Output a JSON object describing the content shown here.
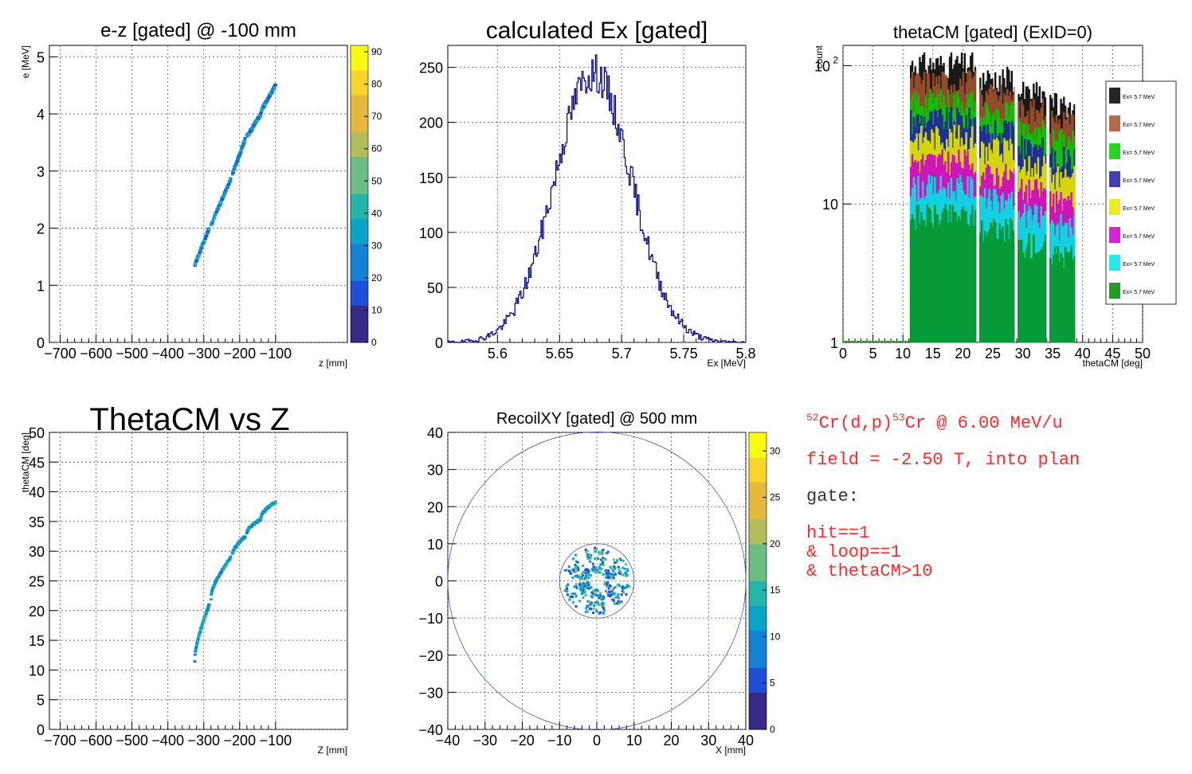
{
  "colors": {
    "axis": "#000000",
    "grid": "#555555",
    "hist_line": "#000080",
    "scatter": "#2f6fd0",
    "palette": [
      "#352a87",
      "#1f4fd8",
      "#1482d4",
      "#0aa3c8",
      "#22b5a8",
      "#6bbd82",
      "#b4bc5a",
      "#e5b93c",
      "#f8d52a",
      "#f9fb0e"
    ],
    "note_red": "#ff2a2a",
    "note_black": "#333333",
    "legend_colors": [
      "#000000",
      "#a0522d",
      "#00cc00",
      "#2020a0",
      "#e8e800",
      "#cc00cc",
      "#00e5e5",
      "#008800"
    ]
  },
  "chart_data": [
    {
      "id": "ez",
      "type": "heatmap",
      "title": "e-z [gated] @  -100 mm",
      "xlabel": "z [mm]",
      "ylabel": "e [MeV]",
      "xlim": [
        -730,
        100
      ],
      "ylim": [
        0,
        5.2
      ],
      "xticks": [
        -700,
        -600,
        -500,
        -400,
        -300,
        -200,
        -100
      ],
      "yticks": [
        0,
        1,
        2,
        3,
        4,
        5
      ],
      "grid": true,
      "colorbar": {
        "min": 0,
        "max": 92,
        "ticks": [
          0,
          10,
          20,
          30,
          40,
          50,
          60,
          70,
          80,
          90
        ]
      },
      "segments": [
        {
          "z": [
            -325,
            -285
          ],
          "e": [
            1.35,
            2.0
          ]
        },
        {
          "z": [
            -280,
            -225
          ],
          "e": [
            2.05,
            2.85
          ]
        },
        {
          "z": [
            -220,
            -185
          ],
          "e": [
            2.95,
            3.55
          ]
        },
        {
          "z": [
            -180,
            -140
          ],
          "e": [
            3.6,
            4.0
          ]
        },
        {
          "z": [
            -140,
            -100
          ],
          "e": [
            4.05,
            4.5
          ]
        }
      ]
    },
    {
      "id": "ex",
      "type": "line",
      "title": "calculated Ex [gated]",
      "xlabel": "Ex [MeV]",
      "ylabel": "",
      "xlim": [
        5.56,
        5.8
      ],
      "ylim": [
        0,
        270
      ],
      "xticks": [
        5.6,
        5.65,
        5.7,
        5.75,
        5.8
      ],
      "yticks": [
        0,
        50,
        100,
        150,
        200,
        250
      ],
      "grid": true,
      "mean": 5.677,
      "sigma": 0.031,
      "peak": 245
    },
    {
      "id": "theta",
      "type": "bar",
      "title": "thetaCM [gated] (ExID=0)",
      "xlabel": "thetaCM [deg]",
      "ylabel": "count",
      "log_y": true,
      "xlim": [
        0,
        50
      ],
      "ylim": [
        1,
        140
      ],
      "xticks": [
        0,
        5,
        10,
        15,
        20,
        25,
        30,
        35,
        40,
        45,
        50
      ],
      "yticks": [
        {
          "value": 1,
          "label": "1"
        },
        {
          "value": 10,
          "label": "10"
        },
        {
          "value": 100,
          "label": "10^2"
        }
      ],
      "grid": true,
      "bands": [
        [
          11.2,
          22.2
        ],
        [
          22.8,
          28.6
        ],
        [
          29.2,
          33.9
        ],
        [
          34.5,
          38.7
        ]
      ],
      "band_levels": [
        100,
        80,
        62,
        52
      ],
      "legend": {
        "position": "right",
        "entries": [
          "Ex=  5.7 MeV",
          "Ex=  5.7 MeV",
          "Ex=  5.7 MeV",
          "Ex=  5.7 MeV",
          "Ex=  5.7 MeV",
          "Ex=  5.7 MeV",
          "Ex=  5.7 MeV",
          "Ex=  5.7 MeV"
        ]
      }
    },
    {
      "id": "thz",
      "type": "scatter",
      "title": "ThetaCM vs Z",
      "xlabel": "Z [mm]",
      "ylabel": "thetaCM [deg]",
      "xlim": [
        -730,
        100
      ],
      "ylim": [
        0,
        50
      ],
      "xticks": [
        -700,
        -600,
        -500,
        -400,
        -300,
        -200,
        -100
      ],
      "yticks": [
        0,
        5,
        10,
        15,
        20,
        25,
        30,
        35,
        40,
        45,
        50
      ],
      "grid": true,
      "segments": [
        {
          "z": [
            -325,
            -285
          ],
          "th": [
            11.5,
            21.0
          ]
        },
        {
          "z": [
            -280,
            -225
          ],
          "th": [
            22.0,
            29.0
          ]
        },
        {
          "z": [
            -220,
            -185
          ],
          "th": [
            29.5,
            32.5
          ]
        },
        {
          "z": [
            -180,
            -140
          ],
          "th": [
            33.0,
            35.5
          ]
        },
        {
          "z": [
            -140,
            -100
          ],
          "th": [
            35.8,
            38.3
          ]
        }
      ]
    },
    {
      "id": "recoil",
      "type": "heatmap",
      "title": "RecoilXY [gated] @  500 mm",
      "xlabel": "X [mm]",
      "ylabel": "",
      "xlim": [
        -40,
        40
      ],
      "ylim": [
        -40,
        40
      ],
      "xticks": [
        -40,
        -30,
        -20,
        -10,
        0,
        10,
        20,
        30,
        40
      ],
      "yticks": [
        -40,
        -30,
        -20,
        -10,
        0,
        10,
        20,
        30,
        40
      ],
      "grid": true,
      "colorbar": {
        "min": 0,
        "max": 32,
        "ticks": [
          0,
          5,
          10,
          15,
          20,
          25,
          30
        ]
      },
      "outer_circle_r": 40,
      "inner_circle_r": 10,
      "ring_r": [
        2.2,
        9.0
      ]
    }
  ],
  "notes": {
    "reaction": {
      "a_target": "52",
      "part1": "Cr(d,p)",
      "a_product": "53",
      "part2": "Cr @ 6.00 MeV/u"
    },
    "field": "field = -2.50 T, into plan",
    "gate_label": "gate:",
    "gate_lines": [
      "hit==1",
      "& loop==1",
      "& thetaCM>10"
    ]
  }
}
